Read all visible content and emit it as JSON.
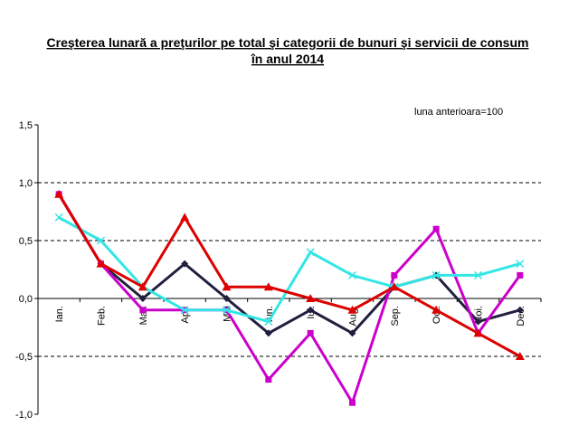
{
  "chart_data": {
    "type": "line",
    "title_line1": "Creşterea lunară a preţurilor pe total şi categorii de bunuri şi servicii de consum",
    "title_line2": "în anul 2014",
    "annotation": "luna anterioara=100",
    "categories": [
      "Ian.",
      "Feb.",
      "Mar.",
      "Apr.",
      "Mai",
      "Iun.",
      "Iul.",
      "Aug.",
      "Sep.",
      "Oct.",
      "Noi.",
      "Dec."
    ],
    "ylim": [
      -1.0,
      1.5
    ],
    "yticks": [
      "1,5",
      "1,0",
      "0,5",
      "0,0",
      "-0,5",
      "-1,0"
    ],
    "ytick_values": [
      1.5,
      1.0,
      0.5,
      0.0,
      -0.5,
      -1.0
    ],
    "grid": "dashed horizontal",
    "series": [
      {
        "color": "#1f1f3f",
        "marker": "diamond",
        "values": [
          0.9,
          0.3,
          0.0,
          0.3,
          0.0,
          -0.3,
          -0.1,
          -0.3,
          0.1,
          0.2,
          -0.2,
          -0.1
        ]
      },
      {
        "color": "#cc00cc",
        "marker": "square",
        "values": [
          0.9,
          0.3,
          -0.1,
          -0.1,
          -0.1,
          -0.7,
          -0.3,
          -0.9,
          0.2,
          0.6,
          -0.3,
          0.2
        ]
      },
      {
        "color": "#33e6e6",
        "marker": "x",
        "values": [
          0.7,
          0.5,
          0.1,
          -0.1,
          -0.1,
          -0.2,
          0.4,
          0.2,
          0.1,
          0.2,
          0.2,
          0.3
        ]
      },
      {
        "color": "#dd0000",
        "marker": "triangle",
        "values": [
          0.9,
          0.3,
          0.1,
          0.7,
          0.1,
          0.1,
          0.0,
          -0.1,
          0.1,
          -0.1,
          -0.3,
          -0.5
        ]
      }
    ]
  }
}
